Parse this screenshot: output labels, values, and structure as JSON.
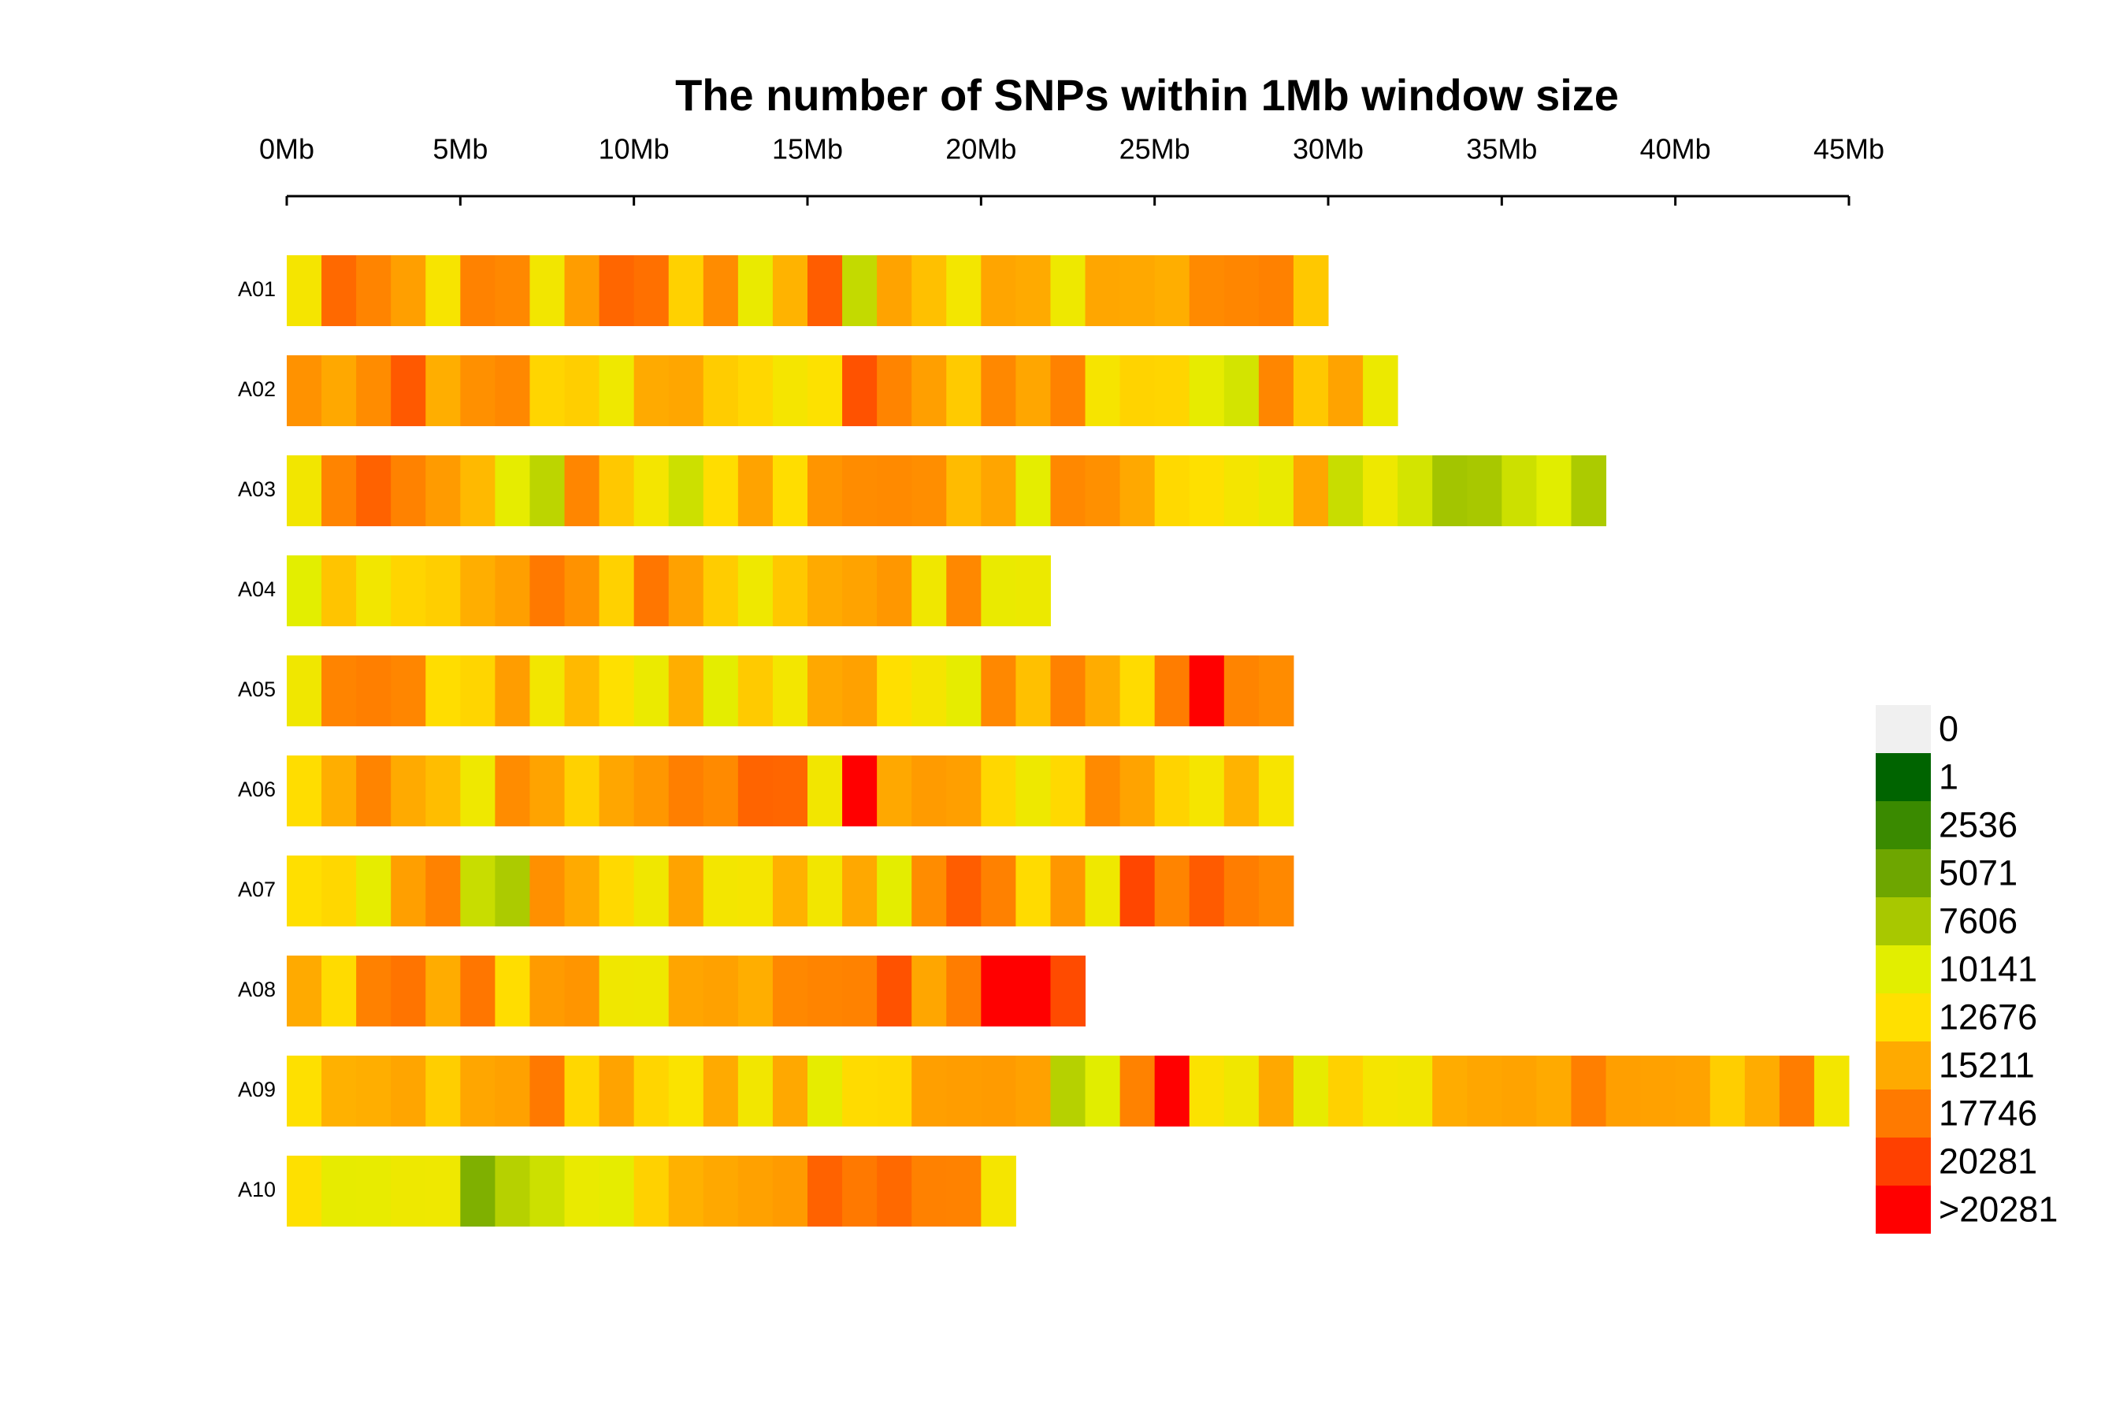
{
  "chart_data": {
    "type": "heatmap",
    "title": "The number of SNPs within 1Mb window size",
    "xlim": [
      0,
      45
    ],
    "xticks": [
      {
        "value": 0,
        "label": "0Mb"
      },
      {
        "value": 5,
        "label": "5Mb"
      },
      {
        "value": 10,
        "label": "10Mb"
      },
      {
        "value": 15,
        "label": "15Mb"
      },
      {
        "value": 20,
        "label": "20Mb"
      },
      {
        "value": 25,
        "label": "25Mb"
      },
      {
        "value": 30,
        "label": "30Mb"
      },
      {
        "value": 35,
        "label": "35Mb"
      },
      {
        "value": 40,
        "label": "40Mb"
      },
      {
        "value": 45,
        "label": "45Mb"
      }
    ],
    "chromosomes": [
      {
        "name": "A01",
        "values": [
          11800,
          18500,
          17200,
          15800,
          12000,
          17300,
          17000,
          11500,
          15900,
          18600,
          18200,
          13400,
          16800,
          10800,
          14800,
          19000,
          8800,
          15600,
          14200,
          11600,
          15500,
          15200,
          11200,
          15400,
          15300,
          15000,
          16900,
          17100,
          17400,
          13800
        ]
      },
      {
        "name": "A02",
        "values": [
          16500,
          15300,
          16800,
          19200,
          15000,
          16600,
          17000,
          13200,
          13500,
          11300,
          15200,
          15400,
          13600,
          13100,
          11800,
          12500,
          19500,
          17200,
          15800,
          13700,
          17000,
          15400,
          17300,
          11900,
          13300,
          13200,
          10600,
          9500,
          17100,
          13800,
          15600,
          11000
        ]
      },
      {
        "name": "A03",
        "values": [
          11500,
          17200,
          18800,
          17300,
          16000,
          14500,
          10500,
          8500,
          17100,
          13800,
          11700,
          9200,
          12800,
          15600,
          12800,
          16300,
          16800,
          16900,
          16700,
          14400,
          15500,
          10400,
          17000,
          16600,
          15300,
          13000,
          12600,
          11700,
          10800,
          15400,
          9000,
          11200,
          9500,
          7400,
          7600,
          9200,
          10100,
          7800
        ]
      },
      {
        "name": "A04",
        "values": [
          10200,
          14000,
          11500,
          13200,
          13500,
          15000,
          15800,
          17800,
          16500,
          13400,
          17900,
          15700,
          13600,
          11300,
          13800,
          15200,
          15600,
          16200,
          11400,
          17000,
          10800,
          11000
        ]
      },
      {
        "name": "A05",
        "values": [
          11400,
          17200,
          17500,
          17100,
          12800,
          13200,
          15900,
          11500,
          14500,
          12600,
          10900,
          15000,
          10300,
          13700,
          11600,
          15300,
          15700,
          12700,
          11800,
          10500,
          17000,
          14200,
          17300,
          15100,
          12900,
          17600,
          21500,
          17200,
          16800
        ]
      },
      {
        "name": "A06",
        "values": [
          12800,
          15000,
          17200,
          15200,
          14300,
          11300,
          16800,
          15600,
          13400,
          15400,
          16200,
          17500,
          16900,
          18700,
          18600,
          11500,
          22500,
          15300,
          16000,
          15800,
          13100,
          11200,
          13000,
          16900,
          15600,
          13300,
          11800,
          14800,
          12000
        ]
      },
      {
        "name": "A07",
        "values": [
          12700,
          13100,
          10500,
          15800,
          17300,
          9000,
          7800,
          16600,
          15200,
          13000,
          11400,
          15600,
          11600,
          11800,
          14900,
          11500,
          15300,
          10300,
          16800,
          19000,
          17400,
          12900,
          16200,
          11300,
          20000,
          17200,
          19100,
          17600,
          17000
        ]
      },
      {
        "name": "A08",
        "values": [
          15200,
          12900,
          17400,
          18000,
          15100,
          17900,
          12800,
          16000,
          16300,
          11400,
          11300,
          15500,
          15700,
          15000,
          17000,
          17200,
          17300,
          19500,
          15400,
          17600,
          22800,
          22000,
          19800
        ]
      },
      {
        "name": "A09",
        "values": [
          12600,
          14900,
          15000,
          15500,
          13500,
          15400,
          15700,
          17800,
          13100,
          15600,
          13200,
          12200,
          15200,
          11500,
          15300,
          10500,
          12900,
          13000,
          15800,
          15900,
          16000,
          15700,
          8200,
          10100,
          17300,
          20800,
          12300,
          11400,
          15300,
          10600,
          13400,
          11800,
          11500,
          15100,
          15400,
          15600,
          15200,
          17500,
          15800,
          15700,
          15600,
          13500,
          15100,
          17600,
          11600
        ]
      },
      {
        "name": "A10",
        "values": [
          12600,
          10600,
          10700,
          11200,
          11300,
          5800,
          8200,
          9200,
          10800,
          10500,
          13400,
          14900,
          15300,
          15700,
          16000,
          18800,
          17800,
          18500,
          17400,
          17300,
          11800
        ]
      }
    ],
    "legend": [
      {
        "value": 0,
        "color": "#f0f0f0"
      },
      {
        "value": 1,
        "color": "#006400"
      },
      {
        "value": 2536,
        "color": "#3a8a00"
      },
      {
        "value": 5071,
        "color": "#6ea600"
      },
      {
        "value": 7606,
        "color": "#a8c800"
      },
      {
        "value": 10141,
        "color": "#e2ee00"
      },
      {
        "value": 12676,
        "color": "#ffe000"
      },
      {
        "value": 15211,
        "color": "#ffaa00"
      },
      {
        "value": 17746,
        "color": "#ff7a00"
      },
      {
        "value": 20281,
        "color": "#ff4000"
      },
      {
        "label": ">20281",
        "color": "#ff0000"
      }
    ]
  }
}
